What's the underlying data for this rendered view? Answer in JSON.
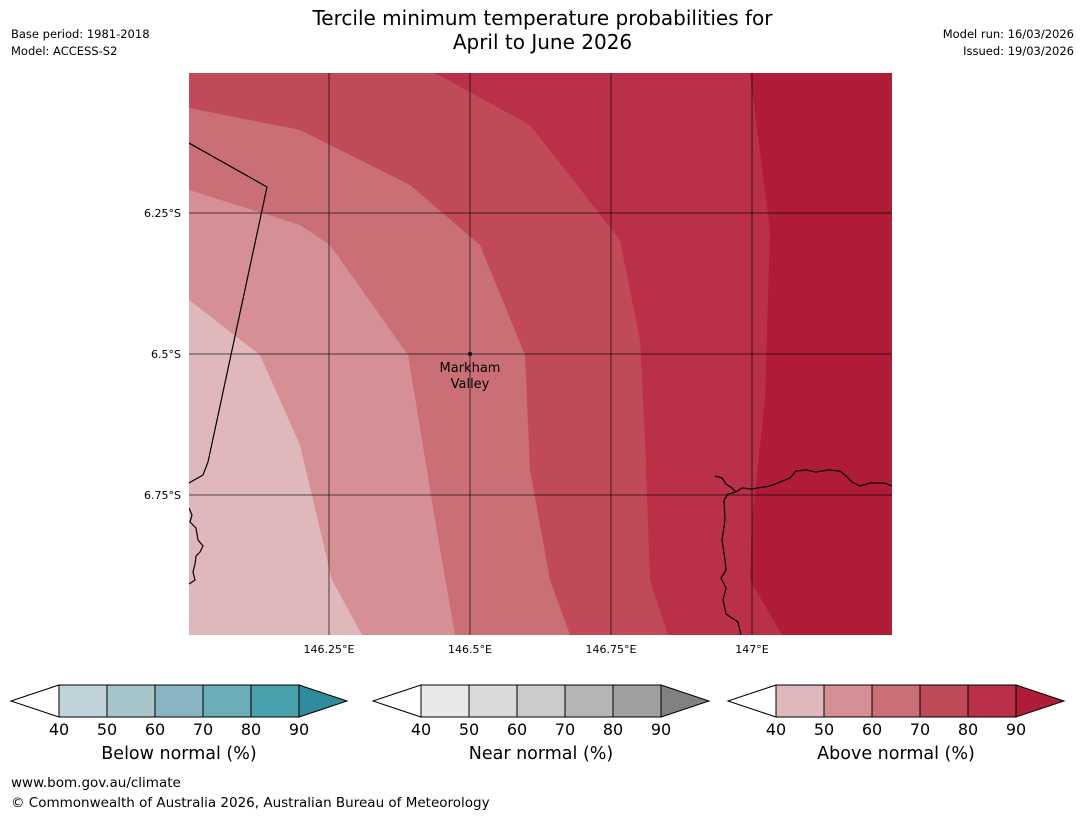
{
  "title": {
    "line1": "Tercile minimum temperature probabilities for",
    "line2": "April to June 2026"
  },
  "meta": {
    "base_period": "Base period: 1981-2018",
    "model": "Model: ACCESS-S2",
    "model_run": "Model run: 16/03/2026",
    "issued": "Issued: 19/03/2026"
  },
  "map": {
    "lat_labels": [
      "6.25°S",
      "6.5°S",
      "6.75°S"
    ],
    "lon_labels": [
      "146.25°E",
      "146.5°E",
      "146.75°E",
      "147°E"
    ],
    "place": {
      "name_line1": "Markham",
      "name_line2": "Valley"
    }
  },
  "colors": {
    "below": [
      "#bfd4da",
      "#a6c5cb",
      "#89b5c2",
      "#6cadba",
      "#48a1ad",
      "#2f8c9f"
    ],
    "near": [
      "#e8e8e8",
      "#dadada",
      "#cbcbcb",
      "#b5b5b5",
      "#a0a0a0",
      "#818181"
    ],
    "above": [
      "#e0b8bb",
      "#d69095",
      "#cb6f77",
      "#c04a57",
      "#ba3049",
      "#b01b37"
    ]
  },
  "legends": [
    {
      "label": "Below normal (%)",
      "ticks": [
        "40",
        "50",
        "60",
        "70",
        "80",
        "90"
      ]
    },
    {
      "label": "Near normal (%)",
      "ticks": [
        "40",
        "50",
        "60",
        "70",
        "80",
        "90"
      ]
    },
    {
      "label": "Above normal (%)",
      "ticks": [
        "40",
        "50",
        "60",
        "70",
        "80",
        "90"
      ]
    }
  ],
  "footer": {
    "url": "www.bom.gov.au/climate",
    "copyright": "© Commonwealth of Australia 2026, Australian Bureau of Meteorology"
  }
}
